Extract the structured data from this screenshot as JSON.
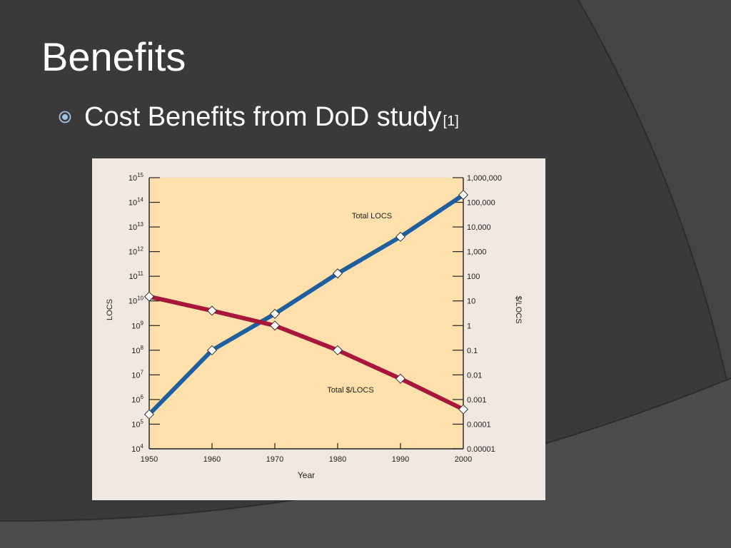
{
  "slide": {
    "title": "Benefits",
    "bullet": {
      "text": "Cost Benefits from DoD study",
      "ref": "[1]",
      "icon": "circle-bullet-icon"
    }
  },
  "colors": {
    "background": "#3a3a3a",
    "plot_area": "#fde0ac",
    "figure_paper": "#efe9e1",
    "locs_series": "#1f5fa0",
    "cost_series": "#a8163c"
  },
  "chart_data": {
    "type": "line",
    "xlabel": "Year",
    "ylabel": "LOCS",
    "y2label": "$/LOCS",
    "x_ticks": [
      "1950",
      "1960",
      "1970",
      "1980",
      "1990",
      "2000"
    ],
    "xlim": [
      1950,
      2000
    ],
    "ylim": [
      10000,
      1000000000000000
    ],
    "y2lim": [
      1e-05,
      1000000
    ],
    "y_scale": "log",
    "y_ticks": [
      {
        "base": "10",
        "exp": "15"
      },
      {
        "base": "10",
        "exp": "14"
      },
      {
        "base": "10",
        "exp": "13"
      },
      {
        "base": "10",
        "exp": "12"
      },
      {
        "base": "10",
        "exp": "11"
      },
      {
        "base": "10",
        "exp": "10"
      },
      {
        "base": "10",
        "exp": "9"
      },
      {
        "base": "10",
        "exp": "8"
      },
      {
        "base": "10",
        "exp": "7"
      },
      {
        "base": "10",
        "exp": "6"
      },
      {
        "base": "10",
        "exp": "5"
      },
      {
        "base": "10",
        "exp": "4"
      }
    ],
    "y2_ticks": [
      "1,000,000",
      "100,000",
      "10,000",
      "1,000",
      "100",
      "10",
      "1",
      "0.1",
      "0.01",
      "0.001",
      "0.0001",
      "0.00001"
    ],
    "grid": false,
    "series": [
      {
        "name": "Total LOCS",
        "axis": "left",
        "x": [
          1950,
          1960,
          1970,
          1980,
          1990,
          2000
        ],
        "y": [
          250000,
          100000000,
          3000000000,
          130000000000,
          4000000000000,
          200000000000000
        ]
      },
      {
        "name": "Total $/LOCS",
        "axis": "right",
        "x": [
          1950,
          1960,
          1970,
          1980,
          1990,
          2000
        ],
        "y": [
          15,
          4,
          1,
          0.1,
          0.007,
          0.0004
        ]
      }
    ]
  }
}
